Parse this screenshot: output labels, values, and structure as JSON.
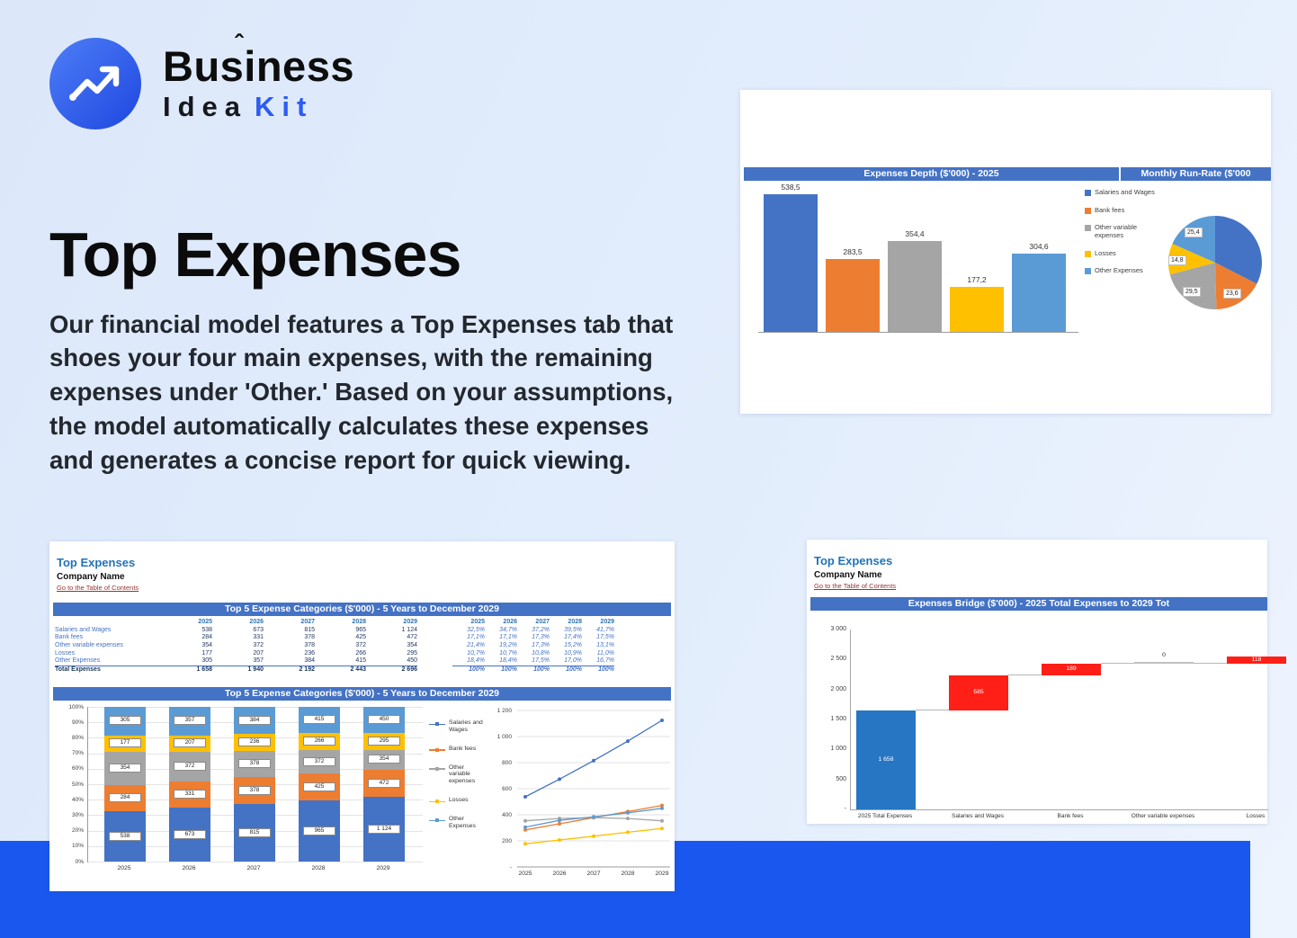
{
  "logo": {
    "line1": "Business",
    "caret": "ˆ",
    "line2_word": "Idea",
    "line2_accent": "Kit"
  },
  "hero": {
    "title": "Top Expenses",
    "body": "Our financial model features a Top Expenses tab that shoes your four main expenses, with the remaining expenses under 'Other.' Based on your assumptions, the model automatically calculates these expenses and generates a concise report for quick viewing."
  },
  "workbook": {
    "sheet_title": "Top Expenses",
    "company": "Company Name",
    "toc_link": "Go to the Table of Contents"
  },
  "colors": {
    "series": [
      "#4472C4",
      "#ED7D31",
      "#A5A5A5",
      "#FFC000",
      "#5B9BD5"
    ],
    "header_bar": "#4472C4",
    "accent": "#2d5cf2",
    "band": "#1a57ee",
    "link": "#943634",
    "bridge_total": "#2776C4",
    "bridge_increase": "#FF1F16",
    "bridge_zero": "#BFBFBF"
  },
  "chart_data": [
    {
      "id": "expenses-depth",
      "type": "bar",
      "title": "Expenses Depth ($'000) - 2025",
      "categories": [
        "Salaries and Wages",
        "Bank fees",
        "Other variable expenses",
        "Losses",
        "Other Expenses"
      ],
      "values": [
        538.5,
        283.5,
        354.4,
        177.2,
        304.6
      ],
      "value_labels": [
        "538,5",
        "283,5",
        "354,4",
        "177,2",
        "304,6"
      ],
      "ylim": [
        0,
        600
      ],
      "legend_position": "right"
    },
    {
      "id": "monthly-run-rate",
      "type": "pie",
      "title": "Monthly Run-Rate ($'000",
      "categories": [
        "Salaries and Wages",
        "Bank fees",
        "Other variable expenses",
        "Losses",
        "Other Expenses"
      ],
      "values": [
        44.9,
        23.6,
        29.5,
        14.8,
        25.4
      ],
      "slice_labels": [
        "",
        "23,6",
        "29,5",
        "14,8",
        "25,4"
      ]
    },
    {
      "id": "top5-table",
      "type": "table",
      "title": "Top 5 Expense Categories ($'000) - 5 Years to December 2029",
      "years": [
        "2025",
        "2026",
        "2027",
        "2028",
        "2029"
      ],
      "rows": [
        {
          "label": "Salaries and Wages",
          "values": [
            "538",
            "673",
            "815",
            "965",
            "1 124"
          ],
          "pcts": [
            "32,5%",
            "34,7%",
            "37,2%",
            "39,5%",
            "41,7%"
          ]
        },
        {
          "label": "Bank fees",
          "values": [
            "284",
            "331",
            "378",
            "425",
            "472"
          ],
          "pcts": [
            "17,1%",
            "17,1%",
            "17,3%",
            "17,4%",
            "17,5%"
          ]
        },
        {
          "label": "Other variable expenses",
          "values": [
            "354",
            "372",
            "378",
            "372",
            "354"
          ],
          "pcts": [
            "21,4%",
            "19,2%",
            "17,3%",
            "15,2%",
            "13,1%"
          ]
        },
        {
          "label": "Losses",
          "values": [
            "177",
            "207",
            "236",
            "266",
            "295"
          ],
          "pcts": [
            "10,7%",
            "10,7%",
            "10,8%",
            "10,9%",
            "11,0%"
          ]
        },
        {
          "label": "Other Expenses",
          "values": [
            "305",
            "357",
            "384",
            "415",
            "450"
          ],
          "pcts": [
            "18,4%",
            "18,4%",
            "17,5%",
            "17,0%",
            "16,7%"
          ]
        }
      ],
      "total": {
        "label": "Total Expenses",
        "values": [
          "1 658",
          "1 940",
          "2 192",
          "2 443",
          "2 696"
        ],
        "pcts": [
          "100%",
          "100%",
          "100%",
          "100%",
          "100%"
        ]
      }
    },
    {
      "id": "top5-stacked",
      "type": "bar",
      "subtype": "stacked-100",
      "title": "Top 5 Expense Categories ($'000) - 5 Years to December 2029",
      "categories": [
        "2025",
        "2026",
        "2027",
        "2028",
        "2029"
      ],
      "series": [
        {
          "name": "Salaries and Wages",
          "values": [
            538,
            673,
            815,
            965,
            1124
          ],
          "labels": [
            "538",
            "673",
            "815",
            "965",
            "1 124"
          ]
        },
        {
          "name": "Bank fees",
          "values": [
            284,
            331,
            378,
            425,
            472
          ],
          "labels": [
            "284",
            "331",
            "378",
            "425",
            "472"
          ]
        },
        {
          "name": "Other variable expenses",
          "values": [
            354,
            372,
            378,
            372,
            354
          ],
          "labels": [
            "354",
            "372",
            "378",
            "372",
            "354"
          ]
        },
        {
          "name": "Losses",
          "values": [
            177,
            207,
            236,
            266,
            295
          ],
          "labels": [
            "177",
            "207",
            "236",
            "266",
            "295"
          ]
        },
        {
          "name": "Other Expenses",
          "values": [
            305,
            357,
            384,
            415,
            450
          ],
          "labels": [
            "305",
            "357",
            "384",
            "415",
            "450"
          ]
        }
      ],
      "y_ticks": [
        "0%",
        "10%",
        "20%",
        "30%",
        "40%",
        "50%",
        "60%",
        "70%",
        "80%",
        "90%",
        "100%"
      ]
    },
    {
      "id": "top5-lines",
      "type": "line",
      "x": [
        "2025",
        "2026",
        "2027",
        "2028",
        "2029"
      ],
      "series": [
        {
          "name": "Salaries and Wages",
          "values": [
            538,
            673,
            815,
            965,
            1124
          ]
        },
        {
          "name": "Bank fees",
          "values": [
            284,
            331,
            378,
            425,
            472
          ]
        },
        {
          "name": "Other variable expenses",
          "values": [
            354,
            372,
            378,
            372,
            354
          ]
        },
        {
          "name": "Losses",
          "values": [
            177,
            207,
            236,
            266,
            295
          ]
        },
        {
          "name": "Other Expenses",
          "values": [
            305,
            357,
            384,
            415,
            450
          ]
        }
      ],
      "ylim": [
        0,
        1200
      ],
      "y_ticks": [
        "1 200",
        "1 000",
        "800",
        "600",
        "400",
        "200",
        "-"
      ],
      "y_tick_values": [
        1200,
        1000,
        800,
        600,
        400,
        200,
        0
      ]
    },
    {
      "id": "expenses-bridge",
      "type": "bar",
      "subtype": "waterfall",
      "title": "Expenses Bridge ($'000) - 2025 Total Expenses to 2029 Tot",
      "steps": [
        {
          "label": "2025 Total Expenses",
          "value": 1658,
          "kind": "total",
          "display": "1 658"
        },
        {
          "label": "Salaries and Wages",
          "value": 585,
          "kind": "increase",
          "display": "585"
        },
        {
          "label": "Bank fees",
          "value": 189,
          "kind": "increase",
          "display": "189"
        },
        {
          "label": "Other variable expenses",
          "value": 0,
          "kind": "increase",
          "display": "0"
        },
        {
          "label": "Losses",
          "value": 118,
          "kind": "increase",
          "display": "118"
        }
      ],
      "ylim": [
        0,
        3000
      ],
      "y_ticks": [
        "3 000",
        "2 500",
        "2 000",
        "1 500",
        "1 000",
        "500",
        "-"
      ],
      "y_tick_values": [
        3000,
        2500,
        2000,
        1500,
        1000,
        500,
        0
      ]
    }
  ]
}
